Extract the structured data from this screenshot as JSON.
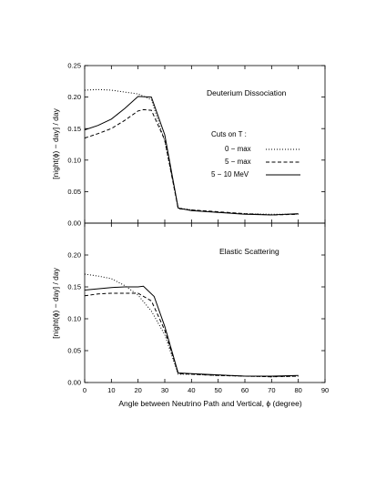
{
  "chart_data": [
    {
      "type": "line",
      "title": "Deuterium Dissociation",
      "xlabel": "",
      "ylabel": "[night(ϕ) − day] / day",
      "xlim": [
        0,
        90
      ],
      "ylim": [
        0,
        0.25
      ],
      "yticks": [
        "0.00",
        "0.05",
        "0.10",
        "0.15",
        "0.20",
        "0.25"
      ],
      "xticks": [],
      "legend": {
        "title": "Cuts on T :",
        "placement": "right"
      },
      "series": [
        {
          "name": "0 − max",
          "style": "dotted",
          "x": [
            0,
            5,
            10,
            15,
            20,
            25,
            30,
            35,
            40,
            50,
            60,
            70,
            80
          ],
          "y": [
            0.211,
            0.212,
            0.211,
            0.208,
            0.205,
            0.196,
            0.13,
            0.024,
            0.021,
            0.017,
            0.015,
            0.014,
            0.014
          ]
        },
        {
          "name": "5 − max",
          "style": "dashed",
          "x": [
            0,
            5,
            10,
            15,
            20,
            22,
            25,
            30,
            35,
            40,
            50,
            60,
            70,
            80
          ],
          "y": [
            0.135,
            0.142,
            0.15,
            0.163,
            0.178,
            0.18,
            0.179,
            0.132,
            0.023,
            0.021,
            0.018,
            0.015,
            0.013,
            0.014
          ]
        },
        {
          "name": "5 − 10 MeV",
          "style": "solid",
          "x": [
            0,
            5,
            10,
            15,
            20,
            25,
            30,
            35,
            40,
            50,
            60,
            70,
            80
          ],
          "y": [
            0.148,
            0.155,
            0.165,
            0.182,
            0.201,
            0.2,
            0.14,
            0.024,
            0.02,
            0.017,
            0.014,
            0.013,
            0.015
          ]
        }
      ]
    },
    {
      "type": "line",
      "title": "Elastic Scattering",
      "xlabel": "Angle between Neutrino Path and Vertical, ϕ   (degree)",
      "ylabel": "[night(ϕ) − day] / day",
      "xlim": [
        0,
        90
      ],
      "ylim": [
        0,
        0.25
      ],
      "yticks": [
        "0.00",
        "0.05",
        "0.10",
        "0.15",
        "0.20",
        ""
      ],
      "xticks": [
        "0",
        "10",
        "20",
        "30",
        "40",
        "50",
        "60",
        "70",
        "80",
        "90"
      ],
      "series": [
        {
          "style": "dotted",
          "x": [
            0,
            5,
            10,
            15,
            20,
            25,
            30,
            35,
            40,
            50,
            60,
            70,
            80
          ],
          "y": [
            0.17,
            0.167,
            0.163,
            0.152,
            0.137,
            0.112,
            0.075,
            0.013,
            0.013,
            0.011,
            0.01,
            0.009,
            0.01
          ]
        },
        {
          "style": "dashed",
          "x": [
            0,
            5,
            10,
            15,
            20,
            25,
            30,
            35,
            40,
            50,
            60,
            70,
            80
          ],
          "y": [
            0.136,
            0.139,
            0.14,
            0.14,
            0.14,
            0.128,
            0.082,
            0.014,
            0.013,
            0.011,
            0.01,
            0.009,
            0.01
          ]
        },
        {
          "style": "solid",
          "x": [
            0,
            5,
            10,
            15,
            20,
            22,
            26,
            30,
            35,
            40,
            50,
            60,
            70,
            80
          ],
          "y": [
            0.145,
            0.147,
            0.149,
            0.15,
            0.15,
            0.151,
            0.135,
            0.088,
            0.015,
            0.014,
            0.012,
            0.01,
            0.01,
            0.011
          ]
        }
      ]
    }
  ]
}
